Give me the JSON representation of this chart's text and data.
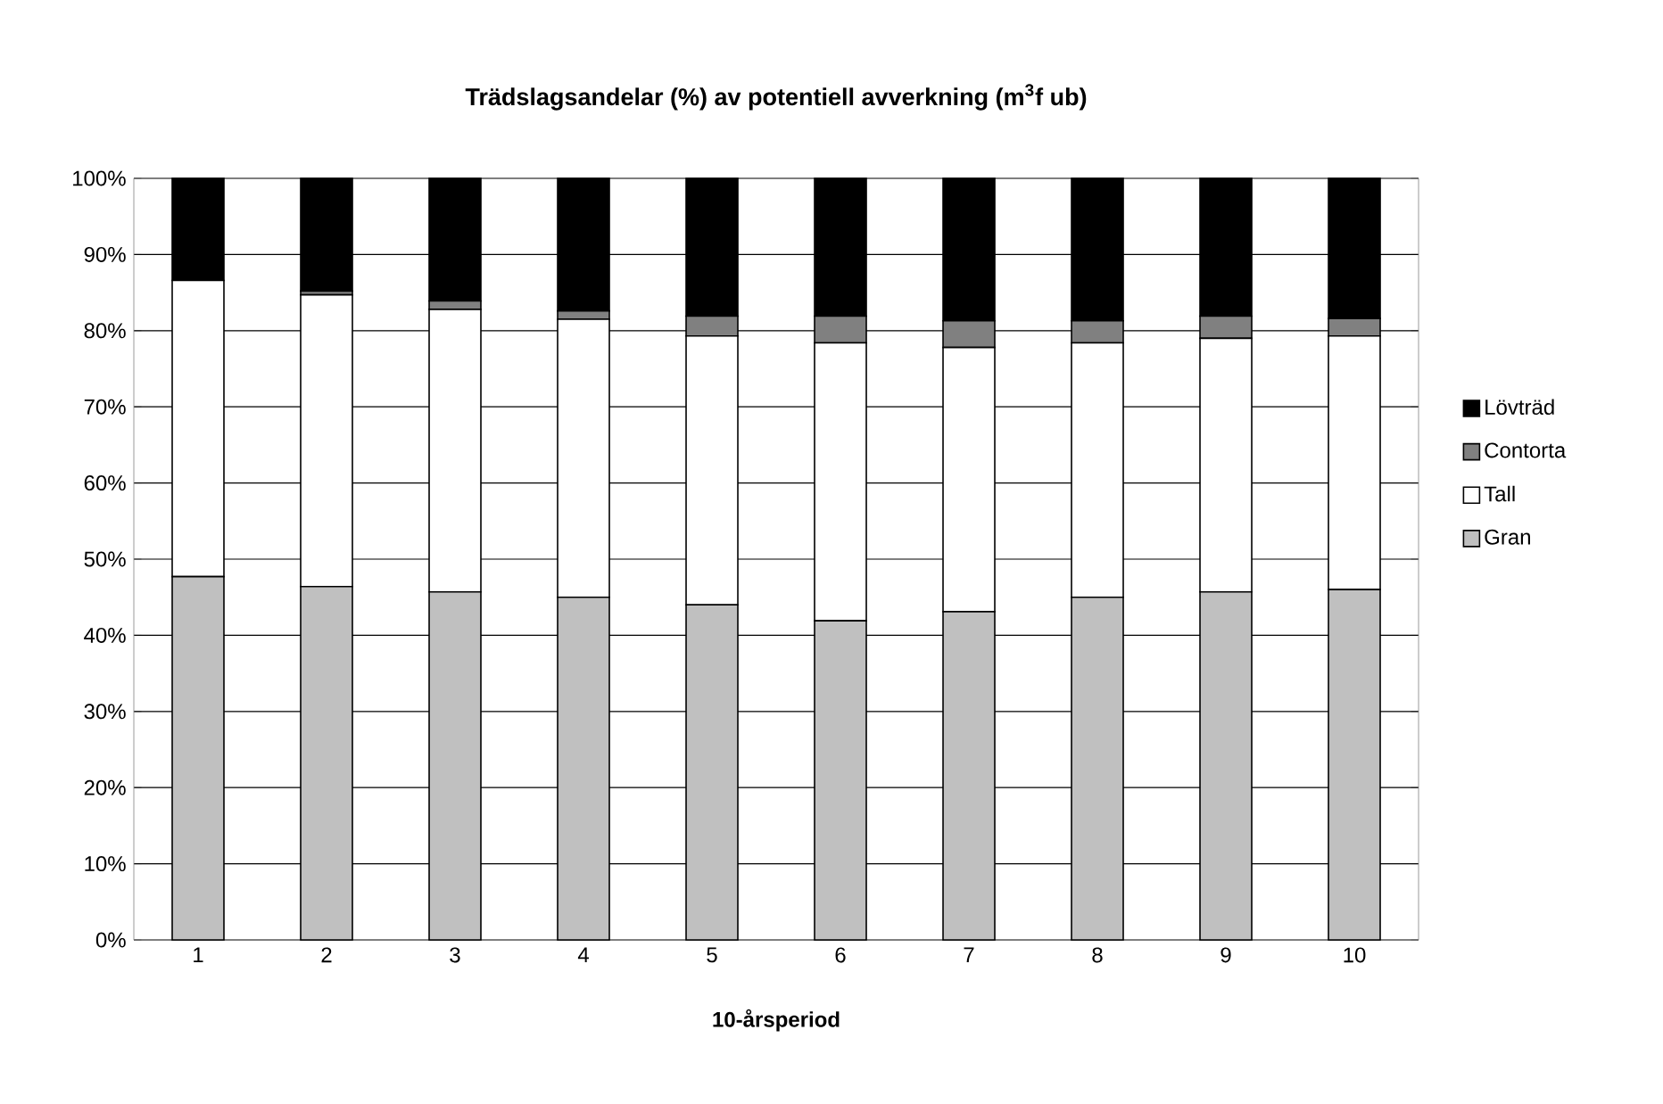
{
  "chart_data": {
    "type": "bar",
    "stacked": true,
    "title": "Trädslagsandelar (%) av potentiell avverkning (m$^{3}$f ub)",
    "xlabel": "10-årsperiod",
    "categories": [
      "1",
      "2",
      "3",
      "4",
      "5",
      "6",
      "7",
      "8",
      "9",
      "10"
    ],
    "series": [
      {
        "name": "Gran",
        "color": "#c0c0c0",
        "values": [
          47.7,
          46.4,
          45.7,
          45.0,
          44.0,
          41.9,
          43.1,
          45.0,
          45.7,
          46.0
        ]
      },
      {
        "name": "Tall",
        "color": "#ffffff",
        "values": [
          38.9,
          38.3,
          37.1,
          36.5,
          35.3,
          36.5,
          34.7,
          33.4,
          33.3,
          33.3
        ]
      },
      {
        "name": "Contorta",
        "color": "#808080",
        "values": [
          0,
          0.5,
          1.1,
          1.1,
          2.6,
          3.5,
          3.5,
          2.9,
          2.9,
          2.3
        ]
      },
      {
        "name": "Lövträd",
        "color": "#000000",
        "values": [
          13.4,
          14.8,
          16.1,
          17.4,
          18.1,
          18.1,
          18.7,
          18.7,
          18.1,
          18.4
        ]
      }
    ],
    "ylim": [
      0,
      100
    ],
    "yticks": [
      {
        "value": 0,
        "label": "0%"
      },
      {
        "value": 10,
        "label": "10%"
      },
      {
        "value": 20,
        "label": "20%"
      },
      {
        "value": 30,
        "label": "30%"
      },
      {
        "value": 40,
        "label": "40%"
      },
      {
        "value": 50,
        "label": "50%"
      },
      {
        "value": 60,
        "label": "60%"
      },
      {
        "value": 70,
        "label": "70%"
      },
      {
        "value": 80,
        "label": "80%"
      },
      {
        "value": 90,
        "label": "90%"
      },
      {
        "value": 100,
        "label": "100%"
      }
    ],
    "grid": "y",
    "legend": "right"
  }
}
